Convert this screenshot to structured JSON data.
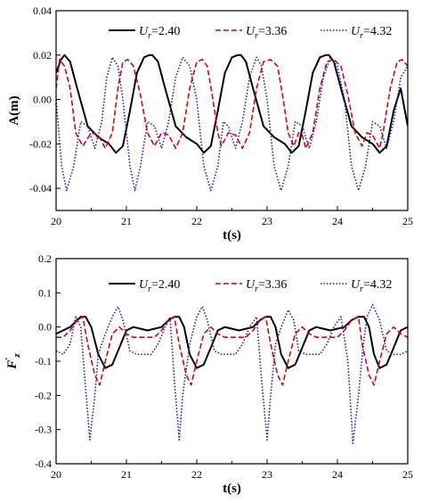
{
  "chart_data": [
    {
      "type": "line",
      "xlabel": "t(s)",
      "ylabel": "A(m)",
      "xlim": [
        20,
        25
      ],
      "ylim": [
        -0.05,
        0.04
      ],
      "xticks": [
        "20",
        "21",
        "22",
        "23",
        "24",
        "25"
      ],
      "yticks": [
        "-0.04",
        "-0.02",
        "0.00",
        "0.02",
        "0.04"
      ],
      "legend": "top",
      "series": [
        {
          "name": "Ur=2.40",
          "name_parts": {
            "sym": "U",
            "sub": "r",
            "val": "=2.40"
          },
          "color": "#000000",
          "dash": "solid",
          "x": [
            20.0,
            20.07,
            20.12,
            20.2,
            20.3,
            20.45,
            20.6,
            20.75,
            20.85,
            20.95,
            21.05,
            21.15,
            21.25,
            21.32,
            21.37,
            21.45,
            21.55,
            21.7,
            21.85,
            22.0,
            22.1,
            22.2,
            22.3,
            22.4,
            22.5,
            22.58,
            22.63,
            22.7,
            22.8,
            22.95,
            23.1,
            23.25,
            23.35,
            23.45,
            23.55,
            23.65,
            23.75,
            23.83,
            23.88,
            23.95,
            24.05,
            24.2,
            24.35,
            24.5,
            24.6,
            24.7,
            24.8,
            24.9,
            25.0
          ],
          "y": [
            0.012,
            0.018,
            0.02,
            0.017,
            0.005,
            -0.012,
            -0.017,
            -0.02,
            -0.024,
            -0.021,
            -0.005,
            0.012,
            0.019,
            0.02,
            0.02,
            0.017,
            0.005,
            -0.012,
            -0.017,
            -0.02,
            -0.024,
            -0.021,
            -0.005,
            0.012,
            0.019,
            0.02,
            0.02,
            0.017,
            0.005,
            -0.012,
            -0.017,
            -0.02,
            -0.024,
            -0.021,
            -0.005,
            0.012,
            0.019,
            0.02,
            0.02,
            0.017,
            0.005,
            -0.012,
            -0.017,
            -0.02,
            -0.024,
            -0.021,
            -0.005,
            0.005,
            -0.012
          ]
        },
        {
          "name": "Ur=3.36",
          "name_parts": {
            "sym": "U",
            "sub": "r",
            "val": "=3.36"
          },
          "color": "#e00000",
          "dash": "dash",
          "x": [
            20.0,
            20.05,
            20.12,
            20.2,
            20.28,
            20.38,
            20.5,
            20.6,
            20.7,
            20.8,
            20.88,
            20.95,
            21.02,
            21.1,
            21.2,
            21.3,
            21.4,
            21.5,
            21.6,
            21.7,
            21.8,
            21.9,
            22.0,
            22.08,
            22.15,
            22.22,
            22.3,
            22.35,
            22.45,
            22.55,
            22.65,
            22.75,
            22.85,
            22.95,
            23.05,
            23.15,
            23.22,
            23.3,
            23.38,
            23.45,
            23.5,
            23.55,
            23.65,
            23.75,
            23.85,
            23.95,
            24.05,
            24.15,
            24.25,
            24.35,
            24.42,
            24.5,
            24.6,
            24.65,
            24.75,
            24.85,
            24.92,
            25.0
          ],
          "y": [
            0.005,
            0.018,
            0.015,
            0.005,
            -0.015,
            -0.021,
            -0.015,
            -0.016,
            -0.022,
            -0.015,
            0.005,
            0.017,
            0.018,
            0.015,
            0.002,
            -0.015,
            -0.021,
            -0.015,
            -0.016,
            -0.022,
            -0.015,
            0.005,
            0.017,
            0.018,
            0.015,
            0.002,
            -0.015,
            -0.021,
            -0.015,
            -0.016,
            -0.022,
            -0.015,
            0.005,
            0.017,
            0.018,
            0.015,
            0.002,
            -0.015,
            -0.021,
            -0.015,
            -0.016,
            -0.022,
            -0.015,
            0.005,
            0.017,
            0.018,
            0.015,
            0.002,
            -0.015,
            -0.021,
            -0.015,
            -0.016,
            -0.022,
            -0.015,
            0.005,
            0.017,
            0.018,
            0.015
          ]
        },
        {
          "name": "Ur=4.32",
          "name_parts": {
            "sym": "U",
            "sub": "r",
            "val": "=4.32"
          },
          "color": "#1a1acc",
          "dash": "dot",
          "x": [
            20.0,
            20.08,
            20.15,
            20.25,
            20.35,
            20.45,
            20.55,
            20.65,
            20.72,
            20.8,
            20.88,
            20.95,
            21.05,
            21.12,
            21.2,
            21.3,
            21.4,
            21.5,
            21.6,
            21.7,
            21.8,
            21.9,
            22.0,
            22.1,
            22.2,
            22.3,
            22.38,
            22.45,
            22.55,
            22.65,
            22.75,
            22.85,
            22.92,
            23.0,
            23.1,
            23.2,
            23.3,
            23.4,
            23.5,
            23.6,
            23.7,
            23.8,
            23.9,
            24.0,
            24.1,
            24.2,
            24.3,
            24.4,
            24.5,
            24.6,
            24.7,
            24.8,
            24.9,
            25.0
          ],
          "y": [
            0.0,
            -0.03,
            -0.041,
            -0.03,
            -0.01,
            -0.012,
            -0.022,
            -0.01,
            0.01,
            0.019,
            0.015,
            0.0,
            -0.03,
            -0.041,
            -0.03,
            -0.01,
            -0.012,
            -0.022,
            -0.01,
            0.01,
            0.019,
            0.015,
            0.0,
            -0.03,
            -0.041,
            -0.03,
            -0.01,
            -0.012,
            -0.022,
            -0.01,
            0.01,
            0.019,
            0.015,
            0.0,
            -0.03,
            -0.041,
            -0.03,
            -0.01,
            -0.012,
            -0.022,
            -0.01,
            0.01,
            0.019,
            0.015,
            0.0,
            -0.03,
            -0.041,
            -0.03,
            -0.01,
            -0.012,
            -0.022,
            -0.01,
            0.01,
            0.015
          ]
        }
      ]
    },
    {
      "type": "line",
      "xlabel": "t(s)",
      "ylabel": "F'z",
      "ylabel_parts": {
        "sym": "F",
        "prime": "′",
        "sub": "z"
      },
      "xlim": [
        20,
        25
      ],
      "ylim": [
        -0.4,
        0.2
      ],
      "xticks": [
        "20",
        "21",
        "22",
        "23",
        "24",
        "25"
      ],
      "yticks": [
        "-0.4",
        "-0.3",
        "-0.2",
        "-0.1",
        "0.0",
        "0.1",
        "0.2"
      ],
      "legend": "top",
      "series": [
        {
          "name": "Ur=2.40",
          "name_parts": {
            "sym": "U",
            "sub": "r",
            "val": "=2.40"
          },
          "color": "#000000",
          "dash": "solid",
          "x": [
            20.0,
            20.1,
            20.2,
            20.3,
            20.35,
            20.42,
            20.5,
            20.6,
            20.7,
            20.8,
            20.9,
            21.0,
            21.1,
            21.2,
            21.3,
            21.4,
            21.5,
            21.6,
            21.68,
            21.75,
            21.82,
            21.9,
            22.0,
            22.1,
            22.2,
            22.3,
            22.4,
            22.5,
            22.6,
            22.7,
            22.8,
            22.9,
            22.98,
            23.05,
            23.12,
            23.2,
            23.3,
            23.4,
            23.5,
            23.6,
            23.7,
            23.8,
            23.9,
            24.0,
            24.1,
            24.2,
            24.3,
            24.38,
            24.45,
            24.52,
            24.6,
            24.7,
            24.8,
            24.9,
            25.0
          ],
          "y": [
            -0.02,
            -0.01,
            0.0,
            0.02,
            0.03,
            0.03,
            0.0,
            -0.08,
            -0.12,
            -0.11,
            -0.06,
            -0.01,
            0.0,
            -0.005,
            -0.01,
            -0.005,
            0.0,
            0.02,
            0.03,
            0.03,
            0.0,
            -0.08,
            -0.12,
            -0.11,
            -0.06,
            -0.01,
            0.0,
            -0.005,
            -0.01,
            -0.005,
            0.0,
            0.02,
            0.03,
            0.03,
            0.0,
            -0.08,
            -0.12,
            -0.11,
            -0.06,
            -0.01,
            0.0,
            -0.005,
            -0.01,
            -0.005,
            0.0,
            0.02,
            0.03,
            0.03,
            0.0,
            -0.08,
            -0.12,
            -0.11,
            -0.06,
            -0.01,
            0.0
          ]
        },
        {
          "name": "Ur=3.36",
          "name_parts": {
            "sym": "U",
            "sub": "r",
            "val": "=3.36"
          },
          "color": "#e00000",
          "dash": "dash",
          "x": [
            20.0,
            20.1,
            20.2,
            20.3,
            20.38,
            20.45,
            20.55,
            20.62,
            20.7,
            20.8,
            20.9,
            21.0,
            21.1,
            21.2,
            21.3,
            21.4,
            21.5,
            21.6,
            21.68,
            21.75,
            21.85,
            21.92,
            22.0,
            22.1,
            22.2,
            22.3,
            22.4,
            22.5,
            22.6,
            22.7,
            22.8,
            22.9,
            22.98,
            23.05,
            23.15,
            23.22,
            23.3,
            23.4,
            23.5,
            23.6,
            23.7,
            23.8,
            23.9,
            24.0,
            24.1,
            24.2,
            24.3,
            24.35,
            24.45,
            24.52,
            24.6,
            24.7,
            24.8,
            24.9,
            25.0
          ],
          "y": [
            -0.03,
            -0.03,
            -0.01,
            0.02,
            0.03,
            -0.05,
            -0.14,
            -0.17,
            -0.1,
            -0.02,
            0.0,
            -0.02,
            -0.03,
            -0.03,
            -0.03,
            -0.03,
            -0.01,
            0.02,
            0.03,
            -0.05,
            -0.14,
            -0.17,
            -0.1,
            -0.02,
            0.0,
            -0.02,
            -0.03,
            -0.03,
            -0.03,
            -0.03,
            -0.01,
            0.02,
            0.03,
            -0.05,
            -0.14,
            -0.17,
            -0.1,
            -0.02,
            0.0,
            -0.02,
            -0.03,
            -0.03,
            -0.03,
            -0.03,
            -0.01,
            0.02,
            0.03,
            -0.05,
            -0.14,
            -0.17,
            -0.1,
            -0.02,
            0.0,
            -0.02,
            -0.03
          ]
        },
        {
          "name": "Ur=4.32",
          "name_parts": {
            "sym": "U",
            "sub": "r",
            "val": "=4.32"
          },
          "color": "#1a1acc",
          "dash": "dot",
          "x": [
            20.0,
            20.1,
            20.2,
            20.28,
            20.35,
            20.42,
            20.48,
            20.55,
            20.6,
            20.7,
            20.8,
            20.88,
            20.95,
            21.05,
            21.15,
            21.25,
            21.35,
            21.45,
            21.55,
            21.62,
            21.68,
            21.75,
            21.8,
            21.9,
            22.0,
            22.08,
            22.15,
            22.25,
            22.35,
            22.45,
            22.55,
            22.65,
            22.75,
            22.85,
            22.92,
            23.0,
            23.05,
            23.12,
            23.2,
            23.3,
            23.38,
            23.45,
            23.55,
            23.65,
            23.75,
            23.85,
            23.95,
            24.05,
            24.15,
            24.22,
            24.3,
            24.37,
            24.42,
            24.5,
            24.6,
            24.7,
            24.8,
            24.9,
            25.0
          ],
          "y": [
            -0.07,
            -0.08,
            -0.05,
            0.03,
            0.0,
            -0.18,
            -0.33,
            -0.2,
            -0.08,
            -0.02,
            0.03,
            0.06,
            0.02,
            -0.07,
            -0.08,
            -0.08,
            -0.08,
            -0.05,
            0.0,
            0.03,
            -0.15,
            -0.33,
            -0.2,
            -0.05,
            0.03,
            0.06,
            0.02,
            -0.07,
            -0.08,
            -0.08,
            -0.08,
            -0.05,
            0.0,
            0.03,
            -0.15,
            -0.33,
            -0.2,
            -0.05,
            0.0,
            0.05,
            0.02,
            -0.07,
            -0.08,
            -0.08,
            -0.08,
            -0.05,
            0.0,
            0.03,
            -0.1,
            -0.34,
            -0.2,
            -0.05,
            0.03,
            0.065,
            0.02,
            -0.07,
            -0.08,
            -0.08,
            -0.07
          ]
        }
      ]
    }
  ]
}
